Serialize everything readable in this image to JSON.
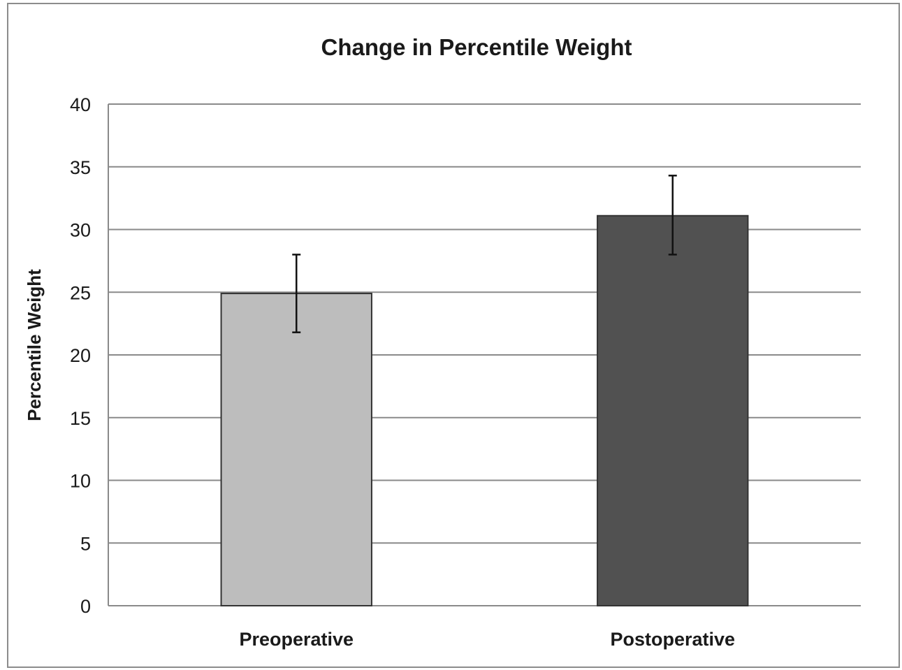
{
  "chart_data": {
    "type": "bar",
    "title": "Change in Percentile Weight",
    "xlabel": "",
    "ylabel": "Percentile Weight",
    "categories": [
      "Preoperative",
      "Postoperative"
    ],
    "values": [
      24.9,
      31.1
    ],
    "error_bars": [
      {
        "low": 21.8,
        "high": 28.0
      },
      {
        "low": 28.0,
        "high": 34.3
      }
    ],
    "bar_colors": [
      "#bdbdbd",
      "#515151"
    ],
    "ylim": [
      0,
      40
    ],
    "yticks": [
      0,
      5,
      10,
      15,
      20,
      25,
      30,
      35,
      40
    ],
    "grid": true,
    "legend": "none"
  }
}
